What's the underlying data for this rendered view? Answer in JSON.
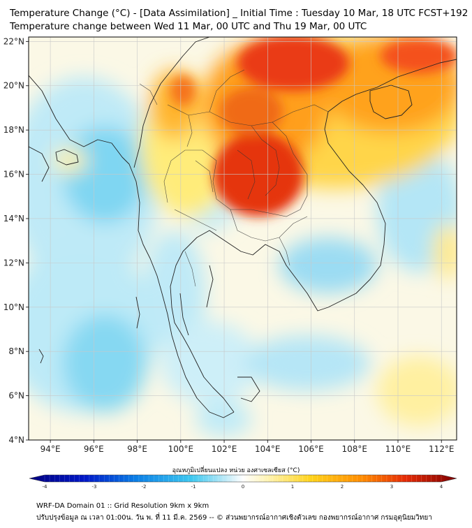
{
  "header": {
    "title_line1": "Temperature Change (°C) - [Data Assimilation] _ Initial Time : Tuesday 10 Mar, 18 UTC FCST+192",
    "title_line2": "Temperature change between Wed 11 Mar, 00 UTC and Thu 19 Mar, 00 UTC"
  },
  "map": {
    "lat_labels": [
      "22°N",
      "20°N",
      "18°N",
      "16°N",
      "14°N",
      "12°N",
      "10°N",
      "8°N",
      "6°N",
      "4°N"
    ],
    "lon_labels": [
      "94°E",
      "96°E",
      "98°E",
      "100°E",
      "102°E",
      "104°E",
      "106°E",
      "108°E",
      "110°E",
      "112°E"
    ],
    "lat_range": [
      4,
      22.2
    ],
    "lon_range": [
      93,
      112.7
    ]
  },
  "colorbar": {
    "title": "อุณหภูมิเปลี่ยนแปลง หน่วย องศาเซลเซียส (°C)",
    "ticks": [
      "-4",
      "-3",
      "-2",
      "-1",
      "0",
      "1",
      "2",
      "3",
      "4"
    ],
    "range": [
      -4,
      4
    ]
  },
  "colors": {
    "warm_max": "#d11a0e",
    "warm_mid": "#ff9800",
    "warm_low": "#ffe866",
    "neutral": "#ffffff",
    "cool_low": "#c4ecf7",
    "cool_mid": "#6fcff0",
    "cool_max": "#23b2ea",
    "coast_line": "#222222"
  },
  "footer": {
    "line1": "WRF-DA Domain 01 :: Grid Resolution 9km x 9km",
    "line2": "ปรับปรุงข้อมูล ณ เวลา 01:00น. วัน พ. ที่ 11 มี.ค. 2569 -- © ส่วนพยากรณ์อากาศเชิงตัวเลข กองพยากรณ์อากาศ กรมอุตุนิยมวิทยา"
  }
}
